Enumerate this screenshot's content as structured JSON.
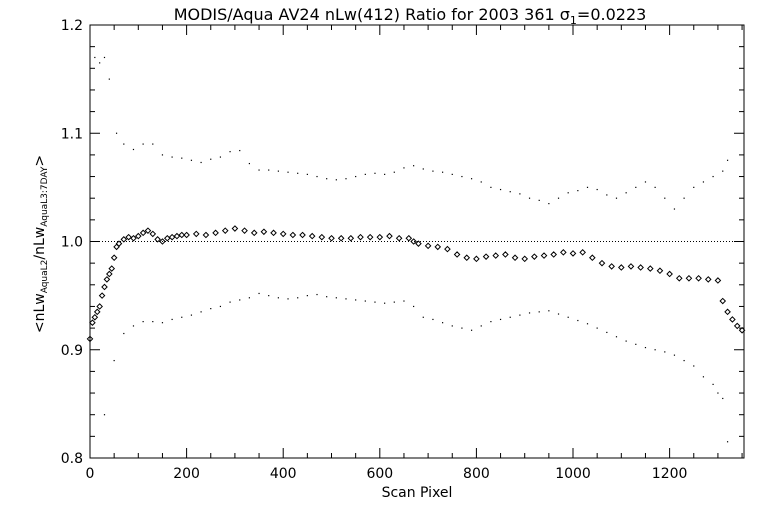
{
  "chart_data": {
    "type": "scatter",
    "title_main": "MODIS/Aqua AV24 nLw(412) Ratio for 2003 361 ",
    "title_sigma": "σ",
    "title_sigma_sub": "1",
    "title_value": "=0.0223",
    "xlabel": "Scan Pixel",
    "ylabel": {
      "prefix": "<nLw",
      "sub1": "AquaL2",
      "middle": "/nLw",
      "sub2": "AquaL3:7DAY",
      "suffix": ">"
    },
    "xlim": [
      0,
      1354
    ],
    "ylim": [
      0.8,
      1.2
    ],
    "xticks": [
      0,
      200,
      400,
      600,
      800,
      1000,
      1200
    ],
    "xtick_labels": [
      "0",
      "200",
      "400",
      "600",
      "800",
      "1000",
      "1200"
    ],
    "yticks": [
      0.8,
      0.9,
      1.0,
      1.1,
      1.2
    ],
    "ytick_labels": [
      "0.8",
      "0.9",
      "1.0",
      "1.1",
      "1.2"
    ],
    "reference_line": 1.0,
    "series": [
      {
        "style": "diamond",
        "points": [
          [
            0,
            0.91
          ],
          [
            5,
            0.925
          ],
          [
            10,
            0.93
          ],
          [
            15,
            0.935
          ],
          [
            20,
            0.94
          ],
          [
            25,
            0.95
          ],
          [
            30,
            0.958
          ],
          [
            35,
            0.965
          ],
          [
            40,
            0.97
          ],
          [
            45,
            0.975
          ],
          [
            50,
            0.985
          ],
          [
            55,
            0.995
          ],
          [
            60,
            0.998
          ],
          [
            70,
            1.002
          ],
          [
            80,
            1.004
          ],
          [
            90,
            1.003
          ],
          [
            100,
            1.005
          ],
          [
            110,
            1.008
          ],
          [
            120,
            1.01
          ],
          [
            130,
            1.007
          ],
          [
            140,
            1.002
          ],
          [
            150,
            1.0
          ],
          [
            160,
            1.003
          ],
          [
            170,
            1.004
          ],
          [
            180,
            1.005
          ],
          [
            190,
            1.006
          ],
          [
            200,
            1.006
          ],
          [
            220,
            1.007
          ],
          [
            240,
            1.006
          ],
          [
            260,
            1.008
          ],
          [
            280,
            1.01
          ],
          [
            300,
            1.012
          ],
          [
            320,
            1.01
          ],
          [
            340,
            1.008
          ],
          [
            360,
            1.009
          ],
          [
            380,
            1.008
          ],
          [
            400,
            1.007
          ],
          [
            420,
            1.006
          ],
          [
            440,
            1.006
          ],
          [
            460,
            1.005
          ],
          [
            480,
            1.004
          ],
          [
            500,
            1.003
          ],
          [
            520,
            1.003
          ],
          [
            540,
            1.003
          ],
          [
            560,
            1.004
          ],
          [
            580,
            1.004
          ],
          [
            600,
            1.004
          ],
          [
            620,
            1.005
          ],
          [
            640,
            1.003
          ],
          [
            660,
            1.003
          ],
          [
            670,
            1.0
          ],
          [
            680,
            0.998
          ],
          [
            700,
            0.996
          ],
          [
            720,
            0.995
          ],
          [
            740,
            0.993
          ],
          [
            760,
            0.988
          ],
          [
            780,
            0.985
          ],
          [
            800,
            0.984
          ],
          [
            820,
            0.986
          ],
          [
            840,
            0.987
          ],
          [
            860,
            0.988
          ],
          [
            880,
            0.985
          ],
          [
            900,
            0.984
          ],
          [
            920,
            0.986
          ],
          [
            940,
            0.987
          ],
          [
            960,
            0.988
          ],
          [
            980,
            0.99
          ],
          [
            1000,
            0.989
          ],
          [
            1020,
            0.99
          ],
          [
            1040,
            0.985
          ],
          [
            1060,
            0.98
          ],
          [
            1080,
            0.977
          ],
          [
            1100,
            0.976
          ],
          [
            1120,
            0.977
          ],
          [
            1140,
            0.976
          ],
          [
            1160,
            0.975
          ],
          [
            1180,
            0.973
          ],
          [
            1200,
            0.97
          ],
          [
            1220,
            0.966
          ],
          [
            1240,
            0.966
          ],
          [
            1260,
            0.966
          ],
          [
            1280,
            0.965
          ],
          [
            1300,
            0.964
          ],
          [
            1310,
            0.945
          ],
          [
            1320,
            0.935
          ],
          [
            1330,
            0.928
          ],
          [
            1340,
            0.922
          ],
          [
            1350,
            0.918
          ]
        ]
      },
      {
        "style": "dot",
        "points": [
          [
            10,
            1.17
          ],
          [
            20,
            1.165
          ],
          [
            30,
            1.17
          ],
          [
            40,
            1.15
          ],
          [
            55,
            1.1
          ],
          [
            70,
            1.09
          ],
          [
            90,
            1.085
          ],
          [
            110,
            1.09
          ],
          [
            130,
            1.09
          ],
          [
            150,
            1.08
          ],
          [
            170,
            1.078
          ],
          [
            190,
            1.077
          ],
          [
            210,
            1.075
          ],
          [
            230,
            1.073
          ],
          [
            250,
            1.076
          ],
          [
            270,
            1.078
          ],
          [
            290,
            1.083
          ],
          [
            310,
            1.084
          ],
          [
            330,
            1.072
          ],
          [
            350,
            1.066
          ],
          [
            370,
            1.066
          ],
          [
            390,
            1.065
          ],
          [
            410,
            1.064
          ],
          [
            430,
            1.063
          ],
          [
            450,
            1.062
          ],
          [
            470,
            1.06
          ],
          [
            490,
            1.058
          ],
          [
            510,
            1.057
          ],
          [
            530,
            1.058
          ],
          [
            550,
            1.06
          ],
          [
            570,
            1.062
          ],
          [
            590,
            1.063
          ],
          [
            610,
            1.062
          ],
          [
            630,
            1.064
          ],
          [
            650,
            1.068
          ],
          [
            670,
            1.07
          ],
          [
            690,
            1.067
          ],
          [
            710,
            1.065
          ],
          [
            730,
            1.064
          ],
          [
            750,
            1.062
          ],
          [
            770,
            1.06
          ],
          [
            790,
            1.058
          ],
          [
            810,
            1.055
          ],
          [
            830,
            1.05
          ],
          [
            850,
            1.048
          ],
          [
            870,
            1.046
          ],
          [
            890,
            1.044
          ],
          [
            910,
            1.04
          ],
          [
            930,
            1.038
          ],
          [
            950,
            1.035
          ],
          [
            970,
            1.04
          ],
          [
            990,
            1.045
          ],
          [
            1010,
            1.047
          ],
          [
            1030,
            1.05
          ],
          [
            1050,
            1.048
          ],
          [
            1070,
            1.043
          ],
          [
            1090,
            1.04
          ],
          [
            1110,
            1.045
          ],
          [
            1130,
            1.05
          ],
          [
            1150,
            1.055
          ],
          [
            1170,
            1.05
          ],
          [
            1190,
            1.04
          ],
          [
            1210,
            1.03
          ],
          [
            1230,
            1.04
          ],
          [
            1250,
            1.05
          ],
          [
            1270,
            1.055
          ],
          [
            1290,
            1.06
          ],
          [
            1310,
            1.065
          ],
          [
            1320,
            1.075
          ]
        ]
      },
      {
        "style": "dot",
        "points": [
          [
            30,
            0.84
          ],
          [
            50,
            0.89
          ],
          [
            70,
            0.915
          ],
          [
            90,
            0.922
          ],
          [
            110,
            0.926
          ],
          [
            130,
            0.926
          ],
          [
            150,
            0.925
          ],
          [
            170,
            0.928
          ],
          [
            190,
            0.93
          ],
          [
            210,
            0.932
          ],
          [
            230,
            0.935
          ],
          [
            250,
            0.938
          ],
          [
            270,
            0.94
          ],
          [
            290,
            0.944
          ],
          [
            310,
            0.946
          ],
          [
            330,
            0.948
          ],
          [
            350,
            0.952
          ],
          [
            370,
            0.95
          ],
          [
            390,
            0.948
          ],
          [
            410,
            0.947
          ],
          [
            430,
            0.948
          ],
          [
            450,
            0.95
          ],
          [
            470,
            0.951
          ],
          [
            490,
            0.949
          ],
          [
            510,
            0.948
          ],
          [
            530,
            0.947
          ],
          [
            550,
            0.946
          ],
          [
            570,
            0.945
          ],
          [
            590,
            0.944
          ],
          [
            610,
            0.943
          ],
          [
            630,
            0.944
          ],
          [
            650,
            0.945
          ],
          [
            670,
            0.94
          ],
          [
            690,
            0.93
          ],
          [
            710,
            0.928
          ],
          [
            730,
            0.925
          ],
          [
            750,
            0.922
          ],
          [
            770,
            0.92
          ],
          [
            790,
            0.918
          ],
          [
            810,
            0.922
          ],
          [
            830,
            0.926
          ],
          [
            850,
            0.928
          ],
          [
            870,
            0.93
          ],
          [
            890,
            0.932
          ],
          [
            910,
            0.934
          ],
          [
            930,
            0.935
          ],
          [
            950,
            0.936
          ],
          [
            970,
            0.933
          ],
          [
            990,
            0.93
          ],
          [
            1010,
            0.927
          ],
          [
            1030,
            0.924
          ],
          [
            1050,
            0.92
          ],
          [
            1070,
            0.916
          ],
          [
            1090,
            0.912
          ],
          [
            1110,
            0.908
          ],
          [
            1130,
            0.905
          ],
          [
            1150,
            0.902
          ],
          [
            1170,
            0.9
          ],
          [
            1190,
            0.898
          ],
          [
            1210,
            0.895
          ],
          [
            1230,
            0.89
          ],
          [
            1250,
            0.885
          ],
          [
            1270,
            0.875
          ],
          [
            1290,
            0.868
          ],
          [
            1300,
            0.86
          ],
          [
            1310,
            0.855
          ],
          [
            1320,
            0.815
          ]
        ]
      }
    ]
  }
}
